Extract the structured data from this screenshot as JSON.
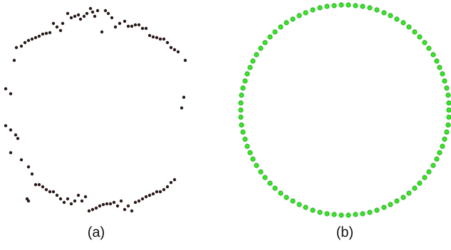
{
  "chart_data": [
    {
      "type": "scatter",
      "title": "(a)",
      "color": "#2a1a18",
      "xlim": [
        0,
        270
      ],
      "ylim": [
        0,
        300
      ],
      "x": [
        20,
        23,
        30,
        35,
        40,
        45,
        50,
        55,
        60,
        65,
        70,
        75,
        80,
        85,
        88,
        95,
        100,
        105,
        110,
        113,
        118,
        122,
        127,
        130,
        133,
        137,
        143,
        148,
        152,
        157,
        162,
        168,
        175,
        180,
        185,
        190,
        195,
        200,
        205,
        210,
        215,
        220,
        225,
        230,
        235,
        240,
        245,
        250,
        260,
        8,
        15,
        8,
        15,
        22,
        25,
        15,
        30,
        40,
        45,
        50,
        55,
        60,
        65,
        70,
        75,
        80,
        85,
        90,
        95,
        100,
        105,
        110,
        115,
        120,
        38,
        40,
        125,
        130,
        135,
        140,
        145,
        150,
        155,
        160,
        165,
        170,
        175,
        180,
        185,
        190,
        195,
        200,
        205,
        210,
        215,
        220,
        225,
        230,
        235,
        240,
        245,
        258,
        255
      ],
      "values": [
        220,
        238,
        240,
        245,
        248,
        250,
        252,
        254,
        257,
        258,
        259,
        272,
        267,
        262,
        272,
        286,
        280,
        282,
        284,
        278,
        282,
        286,
        293,
        288,
        282,
        290,
        260,
        290,
        286,
        280,
        267,
        272,
        275,
        268,
        268,
        270,
        270,
        265,
        265,
        255,
        253,
        252,
        250,
        250,
        245,
        238,
        235,
        232,
        220,
        180,
        173,
        128,
        122,
        115,
        110,
        90,
        80,
        70,
        60,
        45,
        45,
        42,
        38,
        35,
        35,
        30,
        25,
        20,
        25,
        18,
        22,
        30,
        22,
        28,
        25,
        22,
        8,
        10,
        12,
        15,
        17,
        18,
        18,
        20,
        15,
        22,
        10,
        15,
        8,
        20,
        22,
        25,
        28,
        30,
        32,
        35,
        35,
        38,
        42,
        48,
        52,
        168,
        153
      ]
    },
    {
      "type": "scatter",
      "title": "(b)",
      "color": "#3be22c",
      "xlim": [
        330,
        633
      ],
      "ylim": [
        0,
        300
      ],
      "x": [
        630,
        630,
        629,
        627,
        624,
        621,
        617,
        613,
        608,
        602,
        596,
        589,
        582,
        574,
        566,
        557,
        548,
        539,
        529,
        519,
        509,
        499,
        489,
        479,
        469,
        459,
        449,
        439,
        429,
        420,
        411,
        402,
        394,
        386,
        379,
        372,
        366,
        360,
        355,
        351,
        347,
        344,
        341,
        339,
        338,
        338,
        338,
        339,
        341,
        344,
        347,
        351,
        355,
        360,
        366,
        372,
        379,
        386,
        394,
        402,
        411,
        420,
        429,
        439,
        449,
        459,
        469,
        479,
        489,
        499,
        509,
        519,
        529,
        539,
        548,
        557,
        566,
        574,
        582,
        589,
        596,
        602,
        608,
        613,
        617,
        621,
        624,
        627,
        629,
        630
      ],
      "values": [
        150,
        160,
        171,
        181,
        191,
        201,
        210,
        219,
        228,
        237,
        245,
        253,
        260,
        267,
        273,
        278,
        283,
        287,
        291,
        294,
        296,
        297,
        298,
        298,
        297,
        296,
        294,
        291,
        287,
        283,
        278,
        273,
        267,
        260,
        253,
        245,
        237,
        228,
        219,
        210,
        201,
        191,
        181,
        171,
        160,
        150,
        140,
        129,
        119,
        109,
        99,
        90,
        81,
        72,
        63,
        55,
        47,
        40,
        33,
        27,
        22,
        17,
        13,
        9,
        6,
        4,
        3,
        2,
        2,
        3,
        4,
        6,
        9,
        13,
        17,
        22,
        27,
        33,
        40,
        47,
        55,
        63,
        72,
        81,
        90,
        99,
        109,
        119,
        129,
        140
      ]
    }
  ]
}
